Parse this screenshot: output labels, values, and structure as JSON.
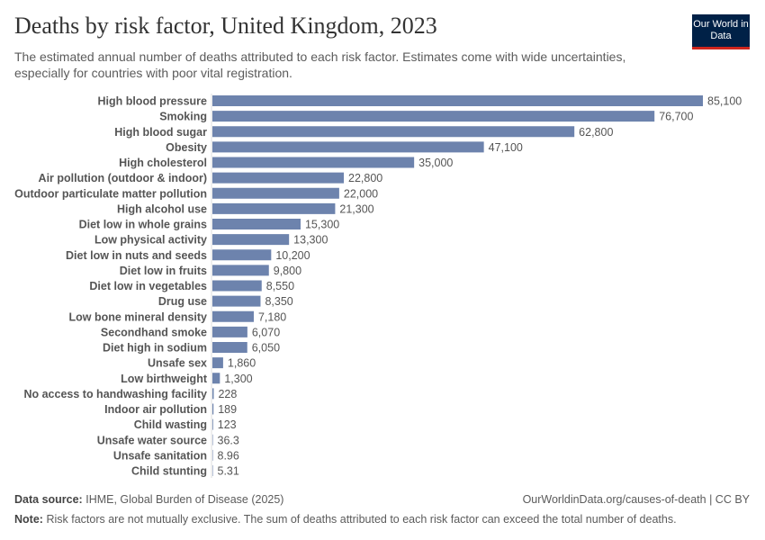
{
  "title": "Deaths by risk factor, United Kingdom, 2023",
  "subtitle": "The estimated annual number of deaths attributed to each risk factor. Estimates come with wide uncertainties, especially for countries with poor vital registration.",
  "logo": "Our World in Data",
  "footer": {
    "source_label": "Data source:",
    "source": "IHME, Global Burden of Disease (2025)",
    "url": "OurWorldinData.org/causes-of-death | CC BY",
    "note_label": "Note:",
    "note": "Risk factors are not mutually exclusive. The sum of deaths attributed to each risk factor can exceed the total number of deaths."
  },
  "chart_data": {
    "type": "bar",
    "orientation": "horizontal",
    "bar_color": "#6d83ad",
    "categories": [
      "High blood pressure",
      "Smoking",
      "High blood sugar",
      "Obesity",
      "High cholesterol",
      "Air pollution (outdoor & indoor)",
      "Outdoor particulate matter pollution",
      "High alcohol use",
      "Diet low in whole grains",
      "Low physical activity",
      "Diet low in nuts and seeds",
      "Diet low in fruits",
      "Diet low in vegetables",
      "Drug use",
      "Low bone mineral density",
      "Secondhand smoke",
      "Diet high in sodium",
      "Unsafe sex",
      "Low birthweight",
      "No access to handwashing facility",
      "Indoor air pollution",
      "Child wasting",
      "Unsafe water source",
      "Unsafe sanitation",
      "Child stunting"
    ],
    "values": [
      85100,
      76700,
      62800,
      47100,
      35000,
      22800,
      22000,
      21300,
      15300,
      13300,
      10200,
      9800,
      8550,
      8350,
      7180,
      6070,
      6050,
      1860,
      1300,
      228,
      189,
      123,
      36.3,
      8.96,
      5.31
    ],
    "labels": [
      "85,100",
      "76,700",
      "62,800",
      "47,100",
      "35,000",
      "22,800",
      "22,000",
      "21,300",
      "15,300",
      "13,300",
      "10,200",
      "9,800",
      "8,550",
      "8,350",
      "7,180",
      "6,070",
      "6,050",
      "1,860",
      "1,300",
      "228",
      "189",
      "123",
      "36.3",
      "8.96",
      "5.31"
    ]
  }
}
